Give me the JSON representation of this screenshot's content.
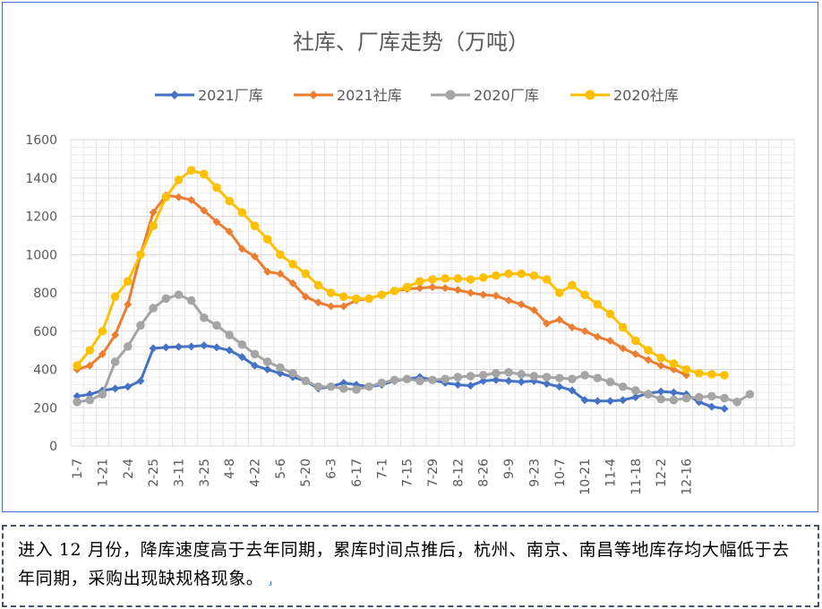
{
  "chart_data": {
    "type": "line",
    "title": "社库、厂库走势（万吨）",
    "xlabel": "",
    "ylabel": "",
    "ylim": [
      0,
      1600
    ],
    "yticks": [
      0,
      200,
      400,
      600,
      800,
      1000,
      1200,
      1400,
      1600
    ],
    "grid": true,
    "legend_position": "top",
    "x_tick_labels": [
      "1-7",
      "1-21",
      "2-4",
      "2-25",
      "3-11",
      "3-25",
      "4-8",
      "4-22",
      "5-6",
      "5-20",
      "6-3",
      "6-17",
      "7-1",
      "7-15",
      "7-29",
      "8-12",
      "8-26",
      "9-9",
      "9-23",
      "10-7",
      "10-21",
      "11-4",
      "11-18",
      "12-2",
      "12-16"
    ],
    "series": [
      {
        "name": "2021厂库",
        "color": "#4472c4",
        "marker": "diamond",
        "values": [
          260,
          270,
          290,
          300,
          310,
          340,
          510,
          515,
          518,
          520,
          525,
          515,
          500,
          465,
          420,
          400,
          380,
          360,
          340,
          300,
          310,
          330,
          320,
          310,
          320,
          340,
          350,
          360,
          345,
          330,
          320,
          315,
          340,
          345,
          340,
          335,
          340,
          325,
          310,
          290,
          240,
          235,
          235,
          240,
          255,
          275,
          285,
          280,
          270,
          230,
          205,
          195
        ]
      },
      {
        "name": "2021社库",
        "color": "#ed7d31",
        "marker": "diamond",
        "values": [
          400,
          420,
          480,
          580,
          740,
          1000,
          1220,
          1310,
          1300,
          1285,
          1230,
          1170,
          1120,
          1030,
          990,
          910,
          900,
          850,
          780,
          750,
          730,
          730,
          760,
          770,
          790,
          810,
          820,
          825,
          830,
          825,
          815,
          800,
          790,
          785,
          760,
          740,
          710,
          640,
          660,
          620,
          600,
          570,
          550,
          510,
          480,
          450,
          420,
          400,
          370
        ]
      },
      {
        "name": "2020厂库",
        "color": "#a5a5a5",
        "marker": "circle",
        "values": [
          230,
          240,
          270,
          440,
          520,
          630,
          720,
          770,
          790,
          760,
          670,
          630,
          580,
          530,
          480,
          440,
          410,
          380,
          340,
          310,
          310,
          300,
          295,
          310,
          330,
          345,
          350,
          340,
          345,
          350,
          360,
          365,
          370,
          380,
          385,
          375,
          365,
          360,
          355,
          350,
          370,
          355,
          335,
          310,
          290,
          270,
          245,
          240,
          250,
          255,
          260,
          250,
          230,
          270
        ]
      },
      {
        "name": "2020社库",
        "color": "#ffc000",
        "marker": "circle",
        "values": [
          420,
          500,
          600,
          780,
          860,
          1000,
          1150,
          1300,
          1390,
          1440,
          1420,
          1350,
          1280,
          1220,
          1150,
          1080,
          1000,
          950,
          900,
          840,
          800,
          780,
          770,
          770,
          790,
          810,
          830,
          860,
          870,
          875,
          875,
          870,
          880,
          890,
          900,
          900,
          890,
          870,
          800,
          840,
          790,
          740,
          690,
          620,
          550,
          500,
          460,
          430,
          400,
          380,
          375,
          370
        ]
      }
    ]
  },
  "caption": {
    "text": "进入 12 月份，降库速度高于去年同期，累库时间点推后，杭州、南京、南昌等地库存均大幅低于去年同期，采购出现缺规格现象。"
  }
}
